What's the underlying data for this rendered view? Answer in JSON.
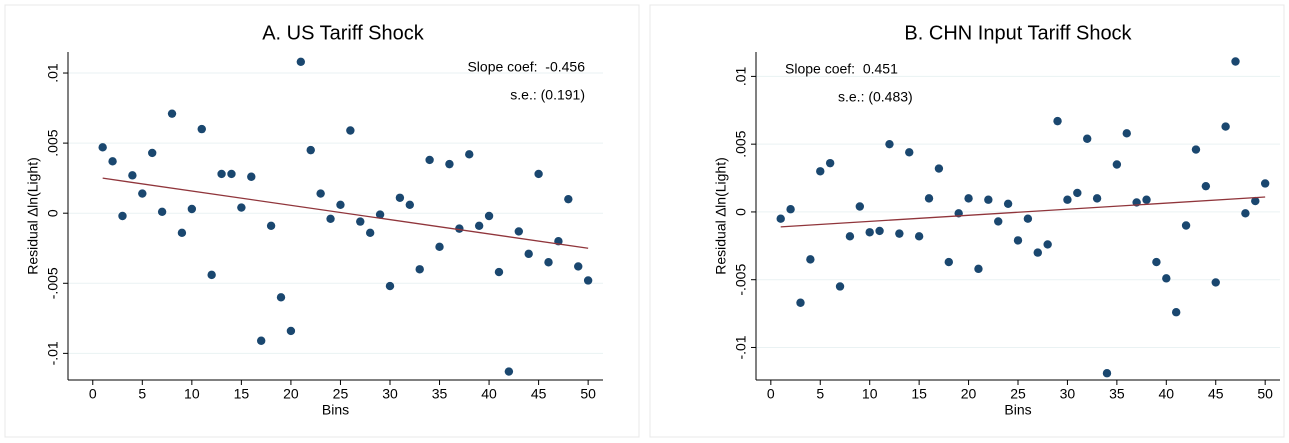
{
  "chart_data": [
    {
      "type": "scatter",
      "title": "A. US Tariff Shock",
      "x_label": "Bins",
      "y_label": "Residual ∆ln(Light)",
      "annotations": [
        "Slope coef:  -0.456",
        "s.e.: (0.191)"
      ],
      "x": [
        1,
        2,
        3,
        4,
        5,
        6,
        7,
        8,
        9,
        10,
        11,
        12,
        13,
        14,
        15,
        16,
        17,
        18,
        19,
        20,
        21,
        22,
        23,
        24,
        25,
        26,
        27,
        28,
        29,
        30,
        31,
        32,
        33,
        34,
        35,
        36,
        37,
        38,
        39,
        40,
        41,
        42,
        43,
        44,
        45,
        46,
        47,
        48,
        49,
        50
      ],
      "values": [
        0.0047,
        0.0037,
        -0.0002,
        0.0027,
        0.0014,
        0.0043,
        0.0001,
        0.0071,
        -0.0014,
        0.0003,
        0.006,
        -0.0044,
        0.0028,
        0.0028,
        0.0004,
        0.0026,
        -0.0091,
        -0.0009,
        -0.006,
        -0.0084,
        0.0108,
        0.0045,
        0.0014,
        -0.0004,
        0.0006,
        0.0059,
        -0.0006,
        -0.0014,
        -0.0001,
        -0.0052,
        0.0011,
        0.0006,
        -0.004,
        0.0038,
        -0.0024,
        0.0035,
        -0.0011,
        0.0042,
        -0.0009,
        -0.0002,
        -0.0042,
        -0.0113,
        -0.0013,
        -0.0029,
        0.0028,
        -0.0035,
        -0.002,
        0.001,
        -0.0038,
        -0.0048
      ],
      "color": "#1a476f",
      "fit": {
        "x": [
          1,
          50
        ],
        "values": [
          0.0025,
          -0.0025
        ],
        "color": "#90353b"
      },
      "xlim": [
        -2.5,
        51.5
      ],
      "ylim": [
        -0.0119,
        0.0115
      ],
      "xticks": [
        0,
        5,
        10,
        15,
        20,
        25,
        30,
        35,
        40,
        45,
        50
      ],
      "yticks": [
        {
          "value": 0.01,
          "label": ".01"
        },
        {
          "value": 0.005,
          "label": ".005"
        },
        0,
        {
          "value": -0.005,
          "label": "-.005"
        },
        {
          "value": -0.01,
          "label": "-.01"
        }
      ],
      "grid": true
    },
    {
      "type": "scatter",
      "title": "B. CHN Input Tariff Shock",
      "x_label": "Bins",
      "y_label": "Residual ∆ln(Light)",
      "annotations": [
        "Slope coef:  0.451",
        "s.e.: (0.483)"
      ],
      "x": [
        1,
        2,
        3,
        4,
        5,
        6,
        7,
        8,
        9,
        10,
        11,
        12,
        13,
        14,
        15,
        16,
        17,
        18,
        19,
        20,
        21,
        22,
        23,
        24,
        25,
        26,
        27,
        28,
        29,
        30,
        31,
        32,
        33,
        34,
        35,
        36,
        37,
        38,
        39,
        40,
        41,
        42,
        43,
        44,
        45,
        46,
        47,
        48,
        49,
        50
      ],
      "values": [
        -0.0005,
        0.0002,
        -0.0067,
        -0.0035,
        0.003,
        0.0036,
        -0.0055,
        -0.0018,
        0.0004,
        -0.0015,
        -0.0014,
        0.005,
        -0.0016,
        0.0044,
        -0.0018,
        0.001,
        0.0032,
        -0.0037,
        -0.0001,
        0.001,
        -0.0042,
        0.0009,
        -0.0007,
        0.0006,
        -0.0021,
        -0.0005,
        -0.003,
        -0.0024,
        0.0067,
        0.0009,
        0.0014,
        0.0054,
        0.001,
        -0.0119,
        0.0035,
        0.0058,
        0.0007,
        0.0009,
        -0.0037,
        -0.0049,
        -0.0074,
        -0.001,
        0.0046,
        0.0019,
        -0.0052,
        0.0063,
        0.0111,
        -0.0001,
        0.0008,
        0.0021
      ],
      "color": "#1a476f",
      "fit": {
        "x": [
          1,
          50
        ],
        "values": [
          -0.0011,
          0.0011
        ],
        "color": "#90353b"
      },
      "xlim": [
        -1.5,
        51.5
      ],
      "ylim": [
        -0.0124,
        0.0118
      ],
      "xticks": [
        0,
        5,
        10,
        15,
        20,
        25,
        30,
        35,
        40,
        45,
        50
      ],
      "yticks": [
        {
          "value": 0.01,
          "label": ".01"
        },
        {
          "value": 0.005,
          "label": ".005"
        },
        0,
        {
          "value": -0.005,
          "label": "-.005"
        },
        {
          "value": -0.01,
          "label": "-.01"
        }
      ],
      "grid": true
    }
  ]
}
